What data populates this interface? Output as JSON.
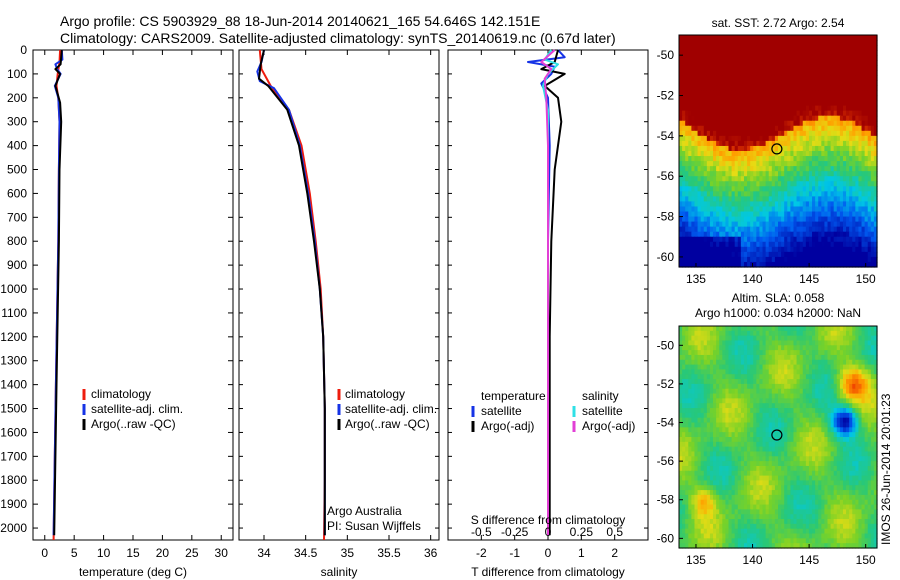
{
  "titles": {
    "line1": "Argo profile: CS 5903929_88 18-Jun-2014 20140621_165 54.646S 142.151E",
    "line2": "Climatology: CARS2009. Satellite-adjusted climatology: synTS_20140619.nc (0.67d later)"
  },
  "colors": {
    "climatology": "#ee1c0e",
    "satellite": "#1633e6",
    "argo": "#000000",
    "sat_salinity": "#2fe0e6",
    "argo_salinity": "#e23fd6"
  },
  "chart_data": [
    {
      "type": "line",
      "id": "temperature",
      "xlabel": "temperature (deg C)",
      "ylabel": "",
      "xlim": [
        -2,
        32
      ],
      "ylim": [
        2050,
        0
      ],
      "xticks": [
        0,
        5,
        10,
        15,
        20,
        25,
        30
      ],
      "yticks": [
        0,
        100,
        200,
        300,
        400,
        500,
        600,
        700,
        800,
        900,
        1000,
        1100,
        1200,
        1300,
        1400,
        1500,
        1600,
        1700,
        1800,
        1900,
        2000
      ],
      "legend": [
        "climatology",
        "satellite-adj. clim.",
        "Argo(..raw -QC)"
      ],
      "series": [
        {
          "name": "climatology",
          "color": "#ee1c0e",
          "points": [
            [
              2.6,
              0
            ],
            [
              2.5,
              50
            ],
            [
              2.2,
              100
            ],
            [
              2.0,
              150
            ],
            [
              2.3,
              200
            ],
            [
              2.5,
              300
            ],
            [
              2.4,
              500
            ],
            [
              2.3,
              800
            ],
            [
              2.1,
              1100
            ],
            [
              1.9,
              1400
            ],
            [
              1.7,
              1700
            ],
            [
              1.5,
              2050
            ]
          ]
        },
        {
          "name": "satellite-adj. clim.",
          "color": "#1633e6",
          "points": [
            [
              2.9,
              0
            ],
            [
              3.0,
              40
            ],
            [
              1.8,
              60
            ],
            [
              2.1,
              80
            ],
            [
              2.7,
              100
            ],
            [
              1.7,
              150
            ],
            [
              2.3,
              200
            ],
            [
              2.5,
              300
            ],
            [
              2.4,
              500
            ],
            [
              2.3,
              800
            ],
            [
              2.1,
              1100
            ],
            [
              1.9,
              1400
            ],
            [
              1.7,
              1700
            ],
            [
              1.5,
              2030
            ]
          ]
        },
        {
          "name": "Argo(..raw -QC)",
          "color": "#000000",
          "points": [
            [
              2.9,
              0
            ],
            [
              2.7,
              60
            ],
            [
              1.8,
              80
            ],
            [
              2.6,
              100
            ],
            [
              1.8,
              150
            ],
            [
              2.6,
              220
            ],
            [
              2.8,
              300
            ],
            [
              2.5,
              500
            ],
            [
              2.4,
              800
            ],
            [
              2.2,
              1100
            ],
            [
              2.0,
              1400
            ],
            [
              1.8,
              1700
            ],
            [
              1.6,
              2030
            ]
          ]
        }
      ]
    },
    {
      "type": "line",
      "id": "salinity",
      "xlabel": "salinity",
      "ylabel": "",
      "xlim": [
        33.7,
        36.1
      ],
      "ylim": [
        2050,
        0
      ],
      "xticks": [
        34,
        34.5,
        35,
        35.5,
        36
      ],
      "legend": [
        "climatology",
        "satellite-adj. clim.",
        "Argo(..raw -QC)"
      ],
      "annotation": [
        "Argo Australia",
        "PI: Susan Wijffels"
      ],
      "series": [
        {
          "name": "climatology",
          "color": "#ee1c0e",
          "points": [
            [
              33.95,
              0
            ],
            [
              33.97,
              80
            ],
            [
              34.08,
              150
            ],
            [
              34.3,
              250
            ],
            [
              34.45,
              400
            ],
            [
              34.55,
              600
            ],
            [
              34.62,
              800
            ],
            [
              34.68,
              1000
            ],
            [
              34.71,
              1200
            ],
            [
              34.73,
              1500
            ],
            [
              34.73,
              1800
            ],
            [
              34.72,
              2050
            ]
          ]
        },
        {
          "name": "satellite-adj. clim.",
          "color": "#1633e6",
          "points": [
            [
              34.0,
              0
            ],
            [
              33.97,
              50
            ],
            [
              33.92,
              90
            ],
            [
              33.95,
              130
            ],
            [
              34.12,
              160
            ],
            [
              34.3,
              250
            ],
            [
              34.43,
              400
            ],
            [
              34.53,
              600
            ],
            [
              34.61,
              800
            ],
            [
              34.67,
              1000
            ],
            [
              34.71,
              1200
            ],
            [
              34.73,
              1500
            ],
            [
              34.73,
              1800
            ],
            [
              34.73,
              2030
            ]
          ]
        },
        {
          "name": "Argo(..raw -QC)",
          "color": "#000000",
          "points": [
            [
              34.0,
              0
            ],
            [
              33.96,
              60
            ],
            [
              33.94,
              120
            ],
            [
              34.05,
              150
            ],
            [
              34.28,
              250
            ],
            [
              34.42,
              400
            ],
            [
              34.52,
              600
            ],
            [
              34.6,
              800
            ],
            [
              34.67,
              1000
            ],
            [
              34.71,
              1200
            ],
            [
              34.73,
              1500
            ],
            [
              34.73,
              1800
            ],
            [
              34.73,
              2030
            ]
          ]
        }
      ]
    },
    {
      "type": "line",
      "id": "differences",
      "xlabel": "T difference from climatology",
      "xlabel_top": "S difference from climatology",
      "xlim": [
        -3,
        3
      ],
      "ylim": [
        2050,
        0
      ],
      "xticks": [
        -2,
        -1,
        0,
        1,
        2
      ],
      "xticks_salinity": [
        -0.5,
        -0.25,
        0,
        0.25,
        0.5
      ],
      "legend_temperature_title": "temperature",
      "legend_salinity_title": "salinity",
      "legend": [
        "satellite",
        "Argo(-adj)",
        "satellite",
        "Argo(-adj)"
      ],
      "series": [
        {
          "name": "temperature satellite",
          "color": "#1633e6",
          "points": [
            [
              0.3,
              0
            ],
            [
              0.5,
              30
            ],
            [
              -0.6,
              50
            ],
            [
              0.2,
              70
            ],
            [
              0.1,
              100
            ],
            [
              -0.2,
              140
            ],
            [
              0.0,
              200
            ],
            [
              0.05,
              400
            ],
            [
              0.0,
              800
            ],
            [
              0.0,
              1200
            ],
            [
              0.0,
              1600
            ],
            [
              0.0,
              2030
            ]
          ]
        },
        {
          "name": "temperature Argo(-adj)",
          "color": "#000000",
          "points": [
            [
              0.3,
              0
            ],
            [
              0.2,
              50
            ],
            [
              -0.2,
              80
            ],
            [
              0.5,
              100
            ],
            [
              -0.1,
              150
            ],
            [
              0.3,
              200
            ],
            [
              0.4,
              300
            ],
            [
              0.2,
              500
            ],
            [
              0.1,
              800
            ],
            [
              0.05,
              1200
            ],
            [
              0.05,
              1600
            ],
            [
              0.05,
              2030
            ]
          ]
        },
        {
          "name": "salinity satellite",
          "color": "#2fe0e6",
          "points": [
            [
              0.1,
              0
            ],
            [
              -0.1,
              40
            ],
            [
              0.3,
              60
            ],
            [
              0.0,
              100
            ],
            [
              -0.15,
              150
            ],
            [
              0.0,
              250
            ],
            [
              0.0,
              600
            ],
            [
              0.0,
              1000
            ],
            [
              0.0,
              1500
            ],
            [
              0.0,
              2030
            ]
          ]
        },
        {
          "name": "salinity Argo(-adj)",
          "color": "#e23fd6",
          "points": [
            [
              0.2,
              0
            ],
            [
              -0.2,
              50
            ],
            [
              0.1,
              80
            ],
            [
              -0.1,
              120
            ],
            [
              -0.05,
              200
            ],
            [
              0.0,
              400
            ],
            [
              0.0,
              800
            ],
            [
              0.0,
              1200
            ],
            [
              0.0,
              1600
            ],
            [
              0.0,
              2030
            ]
          ]
        }
      ]
    },
    {
      "type": "heatmap",
      "id": "sst-map",
      "title": "sat. SST: 2.72 Argo: 2.54",
      "xlim": [
        133.5,
        151
      ],
      "ylim": [
        -60.5,
        -49
      ],
      "xticks": [
        135,
        140,
        145,
        150
      ],
      "yticks": [
        -50,
        -52,
        -54,
        -56,
        -58,
        -60
      ],
      "marker": [
        142.151,
        -54.646
      ]
    },
    {
      "type": "heatmap",
      "id": "sla-map",
      "title_lines": [
        "Altim. SLA: 0.058",
        "Argo h1000: 0.034 h2000: NaN"
      ],
      "xlim": [
        133.5,
        151
      ],
      "ylim": [
        -60.5,
        -49
      ],
      "xticks": [
        135,
        140,
        145,
        150
      ],
      "yticks": [
        -50,
        -52,
        -54,
        -56,
        -58,
        -60
      ],
      "marker": [
        142.151,
        -54.646
      ],
      "side_text": "IMOS 26-Jun-2014 20:01:23"
    }
  ]
}
